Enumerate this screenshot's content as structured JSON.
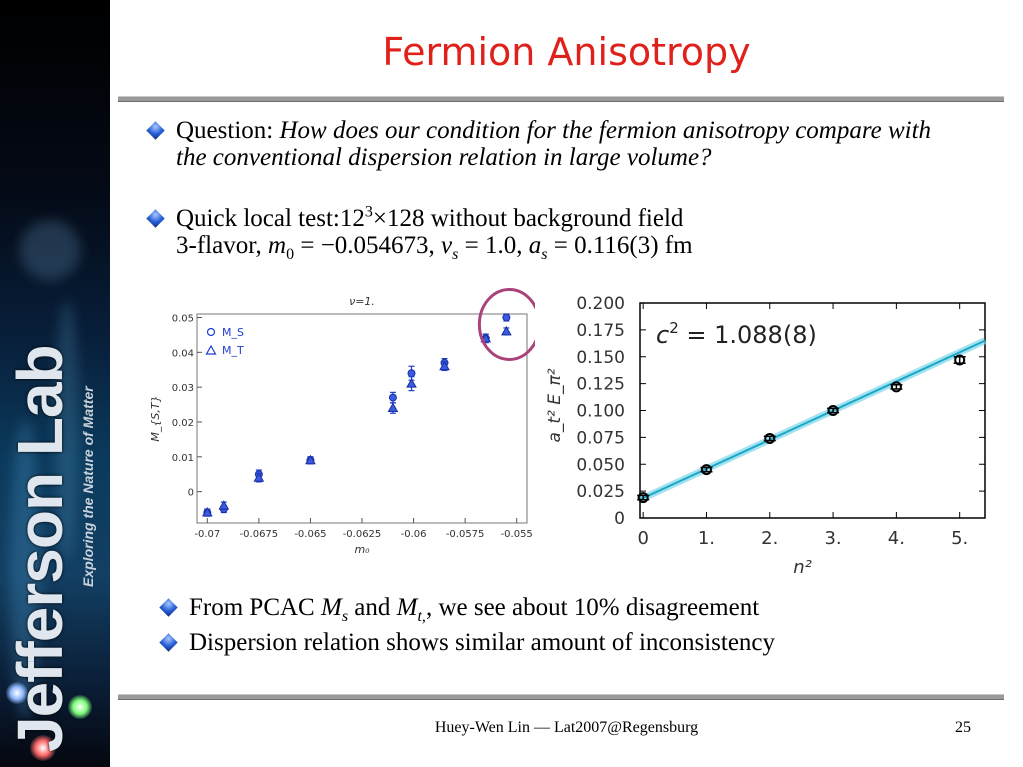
{
  "sidebar": {
    "brand": "Jefferson Lab",
    "tagline": "Exploring the Nature of Matter"
  },
  "slide": {
    "title": "Fermion Anisotropy",
    "bullets": {
      "q_prefix": "Question: ",
      "q_text": "How does our condition for the fermion anisotropy compare with the conventional dispersion relation in large volume?",
      "test_prefix": "Quick local test:12",
      "test_exp": "3",
      "test_suffix": "×128 without background field",
      "flavor_prefix": "3-flavor, ",
      "m0_sym": "m",
      "m0_sub": "0",
      "m0_val": " = −0.054673, ",
      "vs_sym": "v",
      "vs_sub": "s",
      "vs_val": " = 1.0, ",
      "as_sym": "a",
      "as_sub": "s",
      "as_val": " = 0.116(3) fm",
      "pcac_prefix": "From PCAC ",
      "ms_sym": "M",
      "ms_sub": "s",
      "pcac_and": " and ",
      "mt_sym": "M",
      "mt_sub": "t,",
      "pcac_suffix": ", we see about 10% disagreement",
      "dispersion": "Dispersion relation shows similar amount of inconsistency"
    },
    "footer": "Huey-Wen Lin — Lat2007@Regensburg",
    "page_number": "25"
  },
  "chart_data": [
    {
      "type": "scatter",
      "title": "ν=1.",
      "xlabel": "m₀",
      "ylabel": "M_{S,T}",
      "xlim": [
        -0.0705,
        -0.0545
      ],
      "ylim": [
        -0.009,
        0.051
      ],
      "x_ticks": [
        "-0.07",
        "-0.0675",
        "-0.065",
        "-0.0625",
        "-0.06",
        "-0.0575",
        "-0.055"
      ],
      "x_tick_values": [
        -0.07,
        -0.0675,
        -0.065,
        -0.0625,
        -0.06,
        -0.0575,
        -0.055
      ],
      "y_ticks": [
        "0",
        "0.01",
        "0.02",
        "0.03",
        "0.04",
        "0.05"
      ],
      "y_tick_values": [
        0,
        0.01,
        0.02,
        0.03,
        0.04,
        0.05
      ],
      "legend": [
        "M_S",
        "M_T"
      ],
      "legend_position": "top-left",
      "series": [
        {
          "name": "M_S",
          "marker": "circle",
          "color": "#1f3fd0",
          "x": [
            -0.07,
            -0.0692,
            -0.0675,
            -0.065,
            -0.061,
            -0.0601,
            -0.0585,
            -0.0565,
            -0.0555
          ],
          "y": [
            -0.006,
            -0.005,
            0.005,
            0.009,
            0.027,
            0.034,
            0.037,
            0.044,
            0.05
          ],
          "err": [
            0.001,
            0.001,
            0.0012,
            0.001,
            0.0015,
            0.002,
            0.0012,
            0.0012,
            0.001
          ]
        },
        {
          "name": "M_T",
          "marker": "triangle",
          "color": "#1f3fd0",
          "x": [
            -0.07,
            -0.0692,
            -0.0675,
            -0.065,
            -0.061,
            -0.0601,
            -0.0585,
            -0.0565,
            -0.0555
          ],
          "y": [
            -0.006,
            -0.004,
            0.004,
            0.009,
            0.024,
            0.031,
            0.036,
            0.044,
            0.046
          ],
          "err": [
            0.001,
            0.001,
            0.0012,
            0.001,
            0.0015,
            0.002,
            0.0012,
            0.0012,
            0.001
          ]
        }
      ],
      "highlight": {
        "x": -0.0555,
        "y": 0.048,
        "color": "#a9437a"
      },
      "grid": false
    },
    {
      "type": "scatter",
      "xlabel": "n²",
      "ylabel": "a_t² E_π²",
      "annotation_lhs": "c",
      "annotation_exp": "2",
      "annotation_rhs": " =  1.088(8)",
      "xlim": [
        -0.05,
        5.4
      ],
      "ylim": [
        0,
        0.2
      ],
      "x_ticks": [
        "0",
        "1.",
        "2.",
        "3.",
        "4.",
        "5."
      ],
      "x_tick_values": [
        0,
        1,
        2,
        3,
        4,
        5
      ],
      "y_ticks": [
        "0",
        "0.025",
        "0.050",
        "0.075",
        "0.100",
        "0.125",
        "0.150",
        "0.175",
        "0.200"
      ],
      "y_tick_values": [
        0,
        0.025,
        0.05,
        0.075,
        0.1,
        0.125,
        0.15,
        0.175,
        0.2
      ],
      "series": [
        {
          "marker": "circle",
          "color": "#000000",
          "x": [
            0,
            1,
            2,
            3,
            4,
            5
          ],
          "y": [
            0.019,
            0.045,
            0.074,
            0.1,
            0.122,
            0.147
          ],
          "err": [
            0.002,
            0.002,
            0.002,
            0.002,
            0.002,
            0.003
          ]
        }
      ],
      "fit_line": {
        "color": "#1aa8c8",
        "x": [
          -0.05,
          5.4
        ],
        "y": [
          0.0172,
          0.165
        ]
      },
      "grid": false
    }
  ]
}
